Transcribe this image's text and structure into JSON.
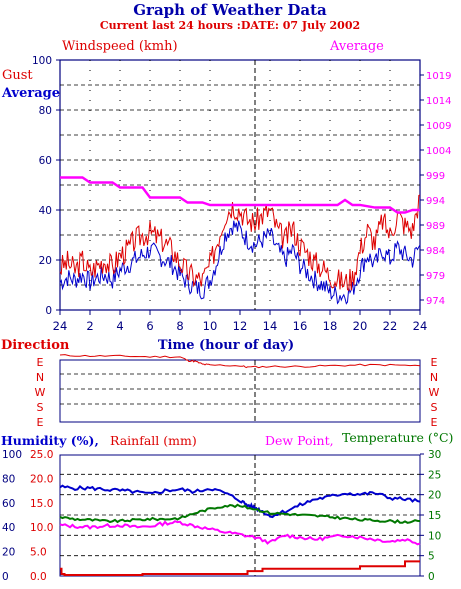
{
  "title": "Graph of Weather Data",
  "subtitle": "Current last 24 hours :DATE: 07 July 2002",
  "colors": {
    "red": "#dd0000",
    "blue": "#0000cc",
    "magenta": "#ff00ff",
    "green": "#007700",
    "axis": "#000080",
    "grid": "#000000"
  },
  "chart_data": [
    {
      "type": "line",
      "panel": "wind",
      "header_left": "Windspeed (kmh)",
      "header_right": "Average",
      "legend": [
        "Gust",
        "Average"
      ],
      "xlabel": "Time (hour of day)",
      "x_ticks": [
        "24",
        "2",
        "4",
        "6",
        "8",
        "10",
        "12",
        "14",
        "16",
        "18",
        "20",
        "22",
        "24"
      ],
      "y_left_ticks": [
        "100",
        "80",
        "60",
        "40",
        "20",
        "0"
      ],
      "y_left_range": [
        0,
        100
      ],
      "y_right_ticks": [
        "1019",
        "1014",
        "1009",
        "1004",
        "999",
        "994",
        "989",
        "984",
        "979",
        "974"
      ],
      "y_right_range": [
        972,
        1022
      ],
      "x_range": [
        0,
        24
      ],
      "series": [
        {
          "name": "Gust",
          "color": "red",
          "x": [
            0,
            0.5,
            1,
            1.5,
            2,
            2.5,
            3,
            3.5,
            4,
            4.5,
            5,
            5.5,
            6,
            6.5,
            7,
            7.5,
            8,
            8.5,
            9,
            9.5,
            10,
            10.5,
            11,
            11.5,
            12,
            12.5,
            13,
            13.5,
            14,
            14.5,
            15,
            15.5,
            16,
            16.5,
            17,
            17.5,
            18,
            18.5,
            19,
            19.5,
            20,
            20.5,
            21,
            21.5,
            22,
            22.5,
            23,
            23.5,
            24
          ],
          "values": [
            17,
            19,
            16,
            20,
            15,
            18,
            20,
            17,
            22,
            24,
            28,
            30,
            31,
            29,
            27,
            24,
            19,
            15,
            13,
            12,
            18,
            28,
            38,
            42,
            40,
            36,
            35,
            38,
            40,
            32,
            28,
            33,
            26,
            23,
            19,
            17,
            14,
            12,
            11,
            13,
            24,
            32,
            27,
            36,
            30,
            38,
            34,
            32,
            46
          ]
        },
        {
          "name": "Average",
          "color": "blue",
          "x": [
            0,
            0.5,
            1,
            1.5,
            2,
            2.5,
            3,
            3.5,
            4,
            4.5,
            5,
            5.5,
            6,
            6.5,
            7,
            7.5,
            8,
            8.5,
            9,
            9.5,
            10,
            10.5,
            11,
            11.5,
            12,
            12.5,
            13,
            13.5,
            14,
            14.5,
            15,
            15.5,
            16,
            16.5,
            17,
            17.5,
            18,
            18.5,
            19,
            19.5,
            20,
            20.5,
            21,
            21.5,
            22,
            22.5,
            23,
            23.5,
            24
          ],
          "values": [
            11,
            13,
            12,
            14,
            11,
            13,
            14,
            12,
            16,
            18,
            20,
            22,
            24,
            22,
            20,
            18,
            14,
            11,
            9,
            8,
            12,
            20,
            30,
            34,
            32,
            28,
            26,
            28,
            30,
            24,
            20,
            24,
            18,
            15,
            12,
            10,
            7,
            6,
            6,
            8,
            16,
            22,
            18,
            24,
            20,
            25,
            22,
            20,
            26
          ]
        },
        {
          "name": "Average",
          "axis": "right",
          "color": "magenta",
          "x": [
            0,
            1.5,
            2,
            3.5,
            4,
            5.5,
            6,
            8,
            8.5,
            9,
            9.5,
            10,
            10.5,
            11,
            11.5,
            12,
            18.5,
            19,
            19.5,
            20,
            21,
            22,
            22.5,
            23,
            23.5,
            24
          ],
          "values": [
            998.5,
            998.5,
            997.5,
            997.5,
            996.5,
            996.5,
            994.5,
            994.5,
            993.5,
            993.5,
            993.5,
            993,
            993,
            993,
            993,
            993,
            993,
            994,
            993,
            993,
            992.5,
            992.5,
            991.5,
            991.5,
            992,
            992
          ]
        }
      ]
    },
    {
      "type": "line",
      "panel": "direction",
      "ylabel": "Direction",
      "y_ticks": [
        "E",
        "N",
        "W",
        "S",
        "E"
      ],
      "x_range": [
        0,
        24
      ],
      "series": [
        {
          "name": "Direction",
          "color": "red",
          "x": [
            0,
            2,
            4,
            6,
            8,
            8.5,
            9,
            9.5,
            10,
            12,
            12.5,
            14,
            16,
            18,
            20,
            22,
            24
          ],
          "values": [
            4.35,
            4.3,
            4.3,
            4.25,
            4.25,
            4.0,
            3.95,
            3.75,
            3.7,
            3.65,
            3.55,
            3.6,
            3.6,
            3.65,
            3.7,
            3.7,
            3.65
          ]
        }
      ]
    },
    {
      "type": "line",
      "panel": "humidity",
      "legend": [
        "Humidity (%),",
        "Rainfall (mm)",
        "Dew Point,",
        "Temperature (°C)"
      ],
      "y_left_ticks": [
        "100",
        "80",
        "60",
        "40",
        "20",
        "0"
      ],
      "y_left_range": [
        0,
        100
      ],
      "y_mid_ticks": [
        "25.0",
        "20.0",
        "15.0",
        "10.0",
        "5.0",
        "0.0"
      ],
      "y_mid_range": [
        0,
        25
      ],
      "y_right_ticks": [
        "30",
        "25",
        "20",
        "15",
        "10",
        "5",
        "0"
      ],
      "y_right_range": [
        0,
        30
      ],
      "x_range": [
        0,
        24
      ],
      "series": [
        {
          "name": "Humidity (%),",
          "color": "blue",
          "x": [
            0,
            1,
            2,
            3,
            4,
            5,
            6,
            7,
            8,
            9,
            10,
            11,
            12,
            12.5,
            13,
            13.5,
            14,
            15,
            16,
            17,
            18,
            19,
            20,
            21,
            22,
            23,
            24
          ],
          "values": [
            73,
            72,
            72,
            71,
            70,
            69,
            67,
            70,
            71,
            69,
            72,
            68,
            62,
            58,
            56,
            53,
            49,
            53,
            58,
            63,
            65,
            68,
            67,
            68,
            64,
            63,
            61
          ]
        },
        {
          "name": "Rainfall (mm)",
          "color": "red",
          "axis": "mid",
          "x": [
            0,
            0.1,
            0.3,
            0.4,
            5.5,
            12.5,
            13,
            13.5,
            18.5,
            20,
            22.5,
            23,
            24
          ],
          "values": [
            1.5,
            0.4,
            0.2,
            0.2,
            0.4,
            1.0,
            1.0,
            1.5,
            1.5,
            2.0,
            2.0,
            3.0,
            3.0
          ]
        },
        {
          "name": "Dew Point,",
          "color": "magenta",
          "axis": "right",
          "x": [
            0,
            1,
            2,
            3,
            4,
            5,
            6,
            7,
            8,
            9,
            10,
            11,
            12,
            13,
            14,
            15,
            16,
            17,
            18,
            19,
            20,
            21,
            22,
            23,
            24
          ],
          "values": [
            12.5,
            12.2,
            12,
            12.3,
            12.5,
            12,
            12.2,
            13,
            13.2,
            12.3,
            11.5,
            10.8,
            10.2,
            9.5,
            8.2,
            10,
            9.5,
            9,
            9.5,
            10,
            9.5,
            9,
            8.5,
            9,
            8
          ]
        },
        {
          "name": "Temperature (°C)",
          "color": "green",
          "axis": "right",
          "x": [
            0,
            1,
            2,
            3,
            4,
            5,
            6,
            7,
            8,
            9,
            10,
            11,
            12,
            13,
            14,
            15,
            16,
            17,
            18,
            19,
            20,
            21,
            22,
            23,
            24
          ],
          "values": [
            14.5,
            14,
            13.8,
            13.5,
            13.5,
            13.8,
            14,
            14,
            14.2,
            15.5,
            16.5,
            17.3,
            17.2,
            16.5,
            15.5,
            15.3,
            15,
            14.8,
            14.5,
            14.2,
            13.8,
            13.7,
            13.5,
            13.3,
            13.5
          ]
        }
      ]
    }
  ]
}
